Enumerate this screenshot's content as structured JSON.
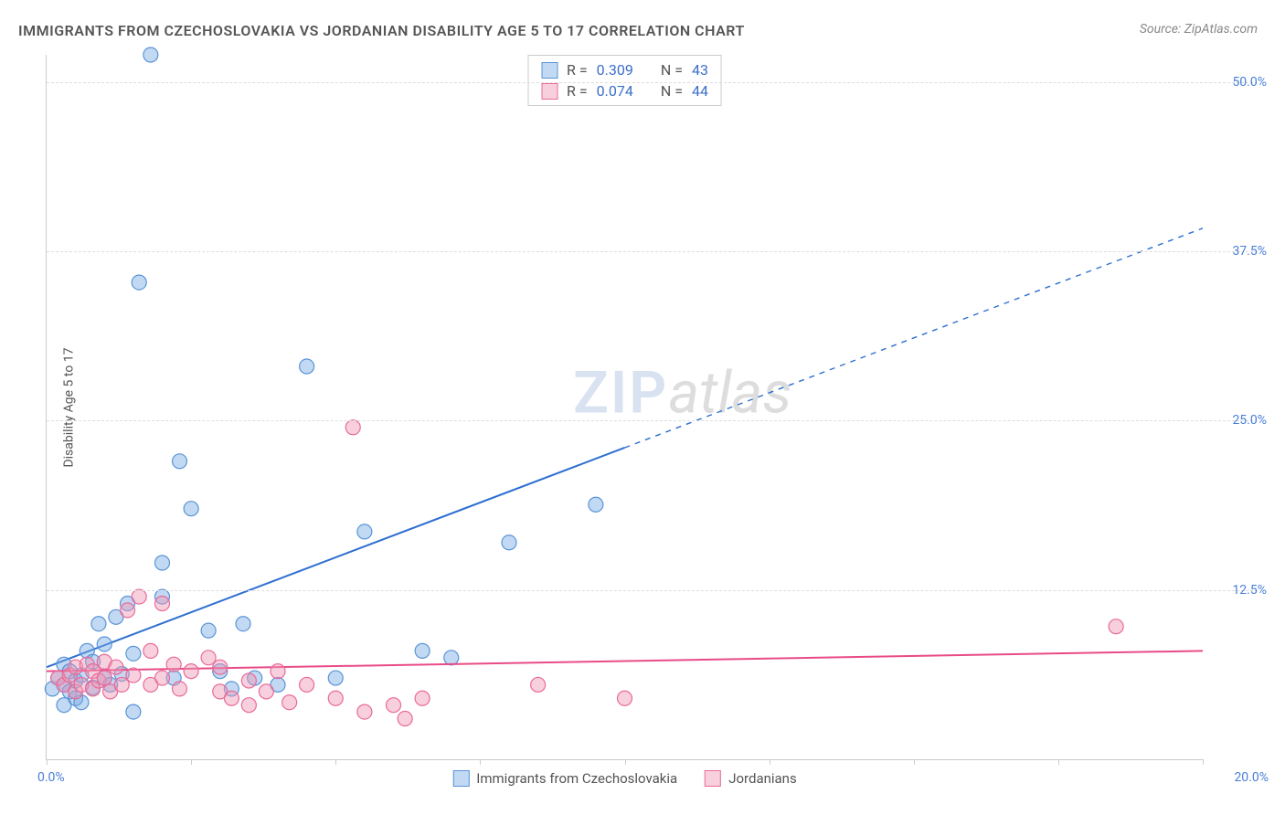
{
  "title": "IMMIGRANTS FROM CZECHOSLOVAKIA VS JORDANIAN DISABILITY AGE 5 TO 17 CORRELATION CHART",
  "source": "Source: ZipAtlas.com",
  "y_axis_label": "Disability Age 5 to 17",
  "watermark": {
    "part1": "ZIP",
    "part2": "atlas"
  },
  "chart": {
    "type": "scatter",
    "background_color": "#ffffff",
    "grid_color": "#dddddd",
    "axis_color": "#cccccc",
    "xlim": [
      0,
      20
    ],
    "ylim": [
      0,
      52
    ],
    "x_ticks": [
      0,
      2.5,
      5,
      7.5,
      10,
      12.5,
      15,
      17.5,
      20
    ],
    "y_ticks": [
      12.5,
      25.0,
      37.5,
      50.0
    ],
    "y_tick_color": "#4a7fd8",
    "x_origin_label": "0.0%",
    "x_max_label": "20.0%",
    "marker_radius": 8,
    "marker_stroke_width": 1.2,
    "line_width": 2,
    "series": [
      {
        "name": "Immigrants from Czechoslovakia",
        "color_fill": "rgba(120,170,230,0.45)",
        "color_stroke": "#5a94d6",
        "line_color": "#2e6fd1",
        "r": "0.309",
        "n": "43",
        "regression": {
          "x1": 0,
          "y1": 6.8,
          "x2_solid": 10,
          "y2_solid": 23.0,
          "x2": 20,
          "y2": 39.2
        },
        "points": [
          [
            0.1,
            5.2
          ],
          [
            0.2,
            6.0
          ],
          [
            0.3,
            5.5
          ],
          [
            0.3,
            7.0
          ],
          [
            0.4,
            5.0
          ],
          [
            0.4,
            6.5
          ],
          [
            0.5,
            5.8
          ],
          [
            0.5,
            4.5
          ],
          [
            0.6,
            6.2
          ],
          [
            0.7,
            8.0
          ],
          [
            0.8,
            5.3
          ],
          [
            0.8,
            7.2
          ],
          [
            0.9,
            10.0
          ],
          [
            1.0,
            6.0
          ],
          [
            1.0,
            8.5
          ],
          [
            1.1,
            5.5
          ],
          [
            1.2,
            10.5
          ],
          [
            1.3,
            6.3
          ],
          [
            1.4,
            11.5
          ],
          [
            1.5,
            7.8
          ],
          [
            1.5,
            3.5
          ],
          [
            1.6,
            35.2
          ],
          [
            1.8,
            52.0
          ],
          [
            2.0,
            14.5
          ],
          [
            2.0,
            12.0
          ],
          [
            2.2,
            6.0
          ],
          [
            2.3,
            22.0
          ],
          [
            2.5,
            18.5
          ],
          [
            2.8,
            9.5
          ],
          [
            3.0,
            6.5
          ],
          [
            3.2,
            5.2
          ],
          [
            3.4,
            10.0
          ],
          [
            3.6,
            6.0
          ],
          [
            4.0,
            5.5
          ],
          [
            4.5,
            29.0
          ],
          [
            5.0,
            6.0
          ],
          [
            5.5,
            16.8
          ],
          [
            6.5,
            8.0
          ],
          [
            8.0,
            16.0
          ],
          [
            9.5,
            18.8
          ],
          [
            7.0,
            7.5
          ],
          [
            0.3,
            4.0
          ],
          [
            0.6,
            4.2
          ]
        ]
      },
      {
        "name": "Jordanians",
        "color_fill": "rgba(240,150,180,0.45)",
        "color_stroke": "#e96a9a",
        "line_color": "#e94b86",
        "r": "0.074",
        "n": "44",
        "regression": {
          "x1": 0,
          "y1": 6.5,
          "x2_solid": 20,
          "y2_solid": 8.0,
          "x2": 20,
          "y2": 8.0
        },
        "points": [
          [
            0.2,
            6.0
          ],
          [
            0.3,
            5.5
          ],
          [
            0.4,
            6.2
          ],
          [
            0.5,
            5.0
          ],
          [
            0.5,
            6.8
          ],
          [
            0.6,
            5.5
          ],
          [
            0.7,
            7.0
          ],
          [
            0.8,
            5.2
          ],
          [
            0.8,
            6.5
          ],
          [
            0.9,
            5.8
          ],
          [
            1.0,
            6.0
          ],
          [
            1.0,
            7.2
          ],
          [
            1.1,
            5.0
          ],
          [
            1.2,
            6.8
          ],
          [
            1.3,
            5.5
          ],
          [
            1.4,
            11.0
          ],
          [
            1.5,
            6.2
          ],
          [
            1.6,
            12.0
          ],
          [
            1.8,
            5.5
          ],
          [
            1.8,
            8.0
          ],
          [
            2.0,
            6.0
          ],
          [
            2.2,
            7.0
          ],
          [
            2.3,
            5.2
          ],
          [
            2.5,
            6.5
          ],
          [
            2.8,
            7.5
          ],
          [
            3.0,
            5.0
          ],
          [
            3.0,
            6.8
          ],
          [
            3.2,
            4.5
          ],
          [
            3.5,
            5.8
          ],
          [
            3.5,
            4.0
          ],
          [
            3.8,
            5.0
          ],
          [
            4.0,
            6.5
          ],
          [
            4.2,
            4.2
          ],
          [
            4.5,
            5.5
          ],
          [
            5.0,
            4.5
          ],
          [
            5.3,
            24.5
          ],
          [
            5.5,
            3.5
          ],
          [
            6.0,
            4.0
          ],
          [
            6.2,
            3.0
          ],
          [
            6.5,
            4.5
          ],
          [
            8.5,
            5.5
          ],
          [
            10.0,
            4.5
          ],
          [
            18.5,
            9.8
          ],
          [
            2.0,
            11.5
          ]
        ]
      }
    ]
  },
  "legend_bottom": [
    {
      "label": "Immigrants from Czechoslovakia",
      "fill": "rgba(120,170,230,0.45)",
      "stroke": "#5a94d6"
    },
    {
      "label": "Jordanians",
      "fill": "rgba(240,150,180,0.45)",
      "stroke": "#e96a9a"
    }
  ],
  "stats_box_value_color": "#3b6fc9"
}
